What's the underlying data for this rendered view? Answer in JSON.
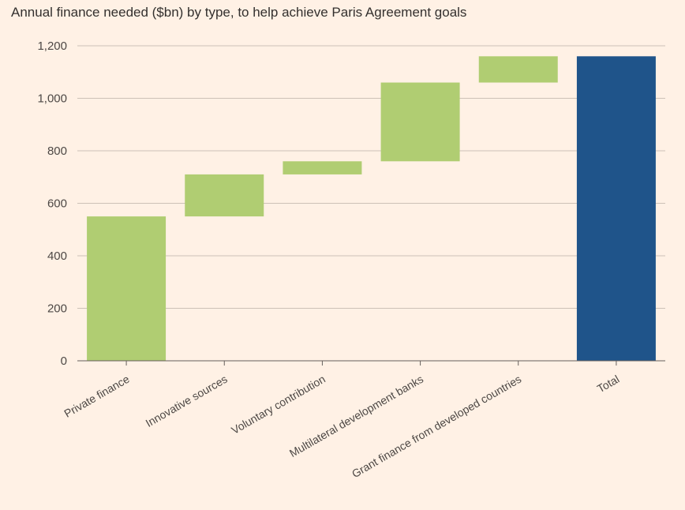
{
  "chart_data": {
    "type": "bar",
    "subtype": "waterfall",
    "title": "Annual finance needed ($bn) by type, to help achieve Paris Agreement goals",
    "xlabel": "",
    "ylabel": "",
    "ylim": [
      0,
      1200
    ],
    "yticks": [
      0,
      200,
      400,
      600,
      800,
      1000,
      1200
    ],
    "ytick_labels": [
      "0",
      "200",
      "400",
      "600",
      "800",
      "1,000",
      "1,200"
    ],
    "grid": true,
    "categories": [
      "Private finance",
      "Innovative sources",
      "Voluntary contribution",
      "Multilateral development banks",
      "Grant finance from developed countries",
      "Total"
    ],
    "values": [
      550,
      160,
      50,
      300,
      100,
      1160
    ],
    "bases": [
      0,
      550,
      710,
      760,
      1060,
      0
    ],
    "is_total": [
      false,
      false,
      false,
      false,
      false,
      true
    ],
    "colors": {
      "increase": "#b0cd72",
      "total": "#1f548a",
      "grid": "#ccc1b7",
      "axis": "#66605c",
      "background": "#fff1e5"
    }
  }
}
